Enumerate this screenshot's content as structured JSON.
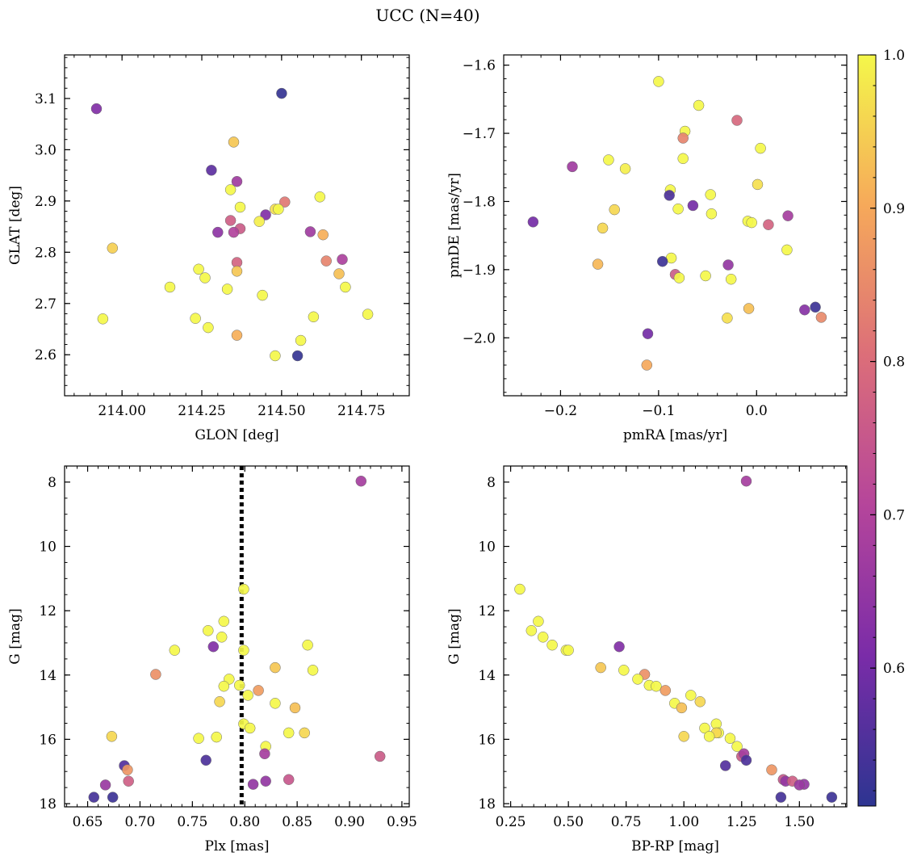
{
  "title": "UCC (N=40)",
  "colorbar": {
    "min": 0.51,
    "max": 1.0,
    "ticks": [
      0.6,
      0.7,
      0.8,
      0.9,
      1.0
    ],
    "tick_labels": [
      "0.6",
      "0.7",
      "0.8",
      "0.9",
      "1.0"
    ],
    "colormap": "plasma"
  },
  "chart_data": [
    {
      "type": "scatter",
      "title": "",
      "xlabel": "GLON [deg]",
      "ylabel": "GLAT [deg]",
      "xlim": [
        213.82,
        214.9
      ],
      "ylim": [
        2.52,
        3.185
      ],
      "y_inverted": false,
      "xticks": [
        214.0,
        214.25,
        214.5,
        214.75
      ],
      "xtick_labels": [
        "214.00",
        "214.25",
        "214.50",
        "214.75"
      ],
      "yticks": [
        2.6,
        2.7,
        2.8,
        2.9,
        3.0,
        3.1
      ],
      "ytick_labels": [
        "2.6",
        "2.7",
        "2.8",
        "2.9",
        "3.0",
        "3.1"
      ],
      "xminor": 0.05,
      "yminor": 0.02,
      "vline": null,
      "points": [
        [
          213.92,
          3.08,
          0.62
        ],
        [
          214.5,
          3.11,
          0.52
        ],
        [
          214.35,
          3.015,
          0.94
        ],
        [
          214.28,
          2.96,
          0.57
        ],
        [
          214.36,
          2.938,
          0.67
        ],
        [
          214.34,
          2.922,
          1.0
        ],
        [
          214.62,
          2.908,
          1.0
        ],
        [
          214.51,
          2.898,
          0.82
        ],
        [
          214.37,
          2.888,
          1.0
        ],
        [
          214.48,
          2.884,
          0.97
        ],
        [
          214.49,
          2.884,
          1.0
        ],
        [
          214.45,
          2.873,
          0.62
        ],
        [
          214.34,
          2.862,
          0.77
        ],
        [
          214.43,
          2.86,
          0.99
        ],
        [
          214.37,
          2.846,
          0.76
        ],
        [
          214.3,
          2.839,
          0.64
        ],
        [
          214.35,
          2.839,
          0.7
        ],
        [
          214.59,
          2.84,
          0.67
        ],
        [
          214.63,
          2.834,
          0.91
        ],
        [
          213.97,
          2.808,
          0.95
        ],
        [
          214.69,
          2.786,
          0.69
        ],
        [
          214.64,
          2.783,
          0.84
        ],
        [
          214.36,
          2.78,
          0.78
        ],
        [
          214.24,
          2.767,
          1.0
        ],
        [
          214.36,
          2.763,
          0.94
        ],
        [
          214.68,
          2.758,
          0.93
        ],
        [
          214.26,
          2.75,
          1.0
        ],
        [
          214.15,
          2.732,
          1.0
        ],
        [
          214.33,
          2.728,
          1.0
        ],
        [
          214.7,
          2.732,
          1.0
        ],
        [
          214.44,
          2.716,
          1.0
        ],
        [
          214.77,
          2.679,
          1.0
        ],
        [
          214.6,
          2.674,
          1.0
        ],
        [
          213.94,
          2.67,
          1.0
        ],
        [
          214.23,
          2.671,
          1.0
        ],
        [
          214.27,
          2.653,
          1.0
        ],
        [
          214.36,
          2.638,
          0.91
        ],
        [
          214.56,
          2.628,
          1.0
        ],
        [
          214.48,
          2.598,
          1.0
        ],
        [
          214.55,
          2.598,
          0.52
        ]
      ]
    },
    {
      "type": "scatter",
      "title": "",
      "xlabel": "pmRA [mas/yr]",
      "ylabel": "pmDE [mas/yr]",
      "xlim": [
        -0.258,
        0.092
      ],
      "ylim": [
        -2.085,
        -1.585
      ],
      "y_inverted": false,
      "xticks": [
        -0.2,
        -0.1,
        0.0
      ],
      "xtick_labels": [
        "−0.2",
        "−0.1",
        "0.0"
      ],
      "yticks": [
        -2.0,
        -1.9,
        -1.8,
        -1.7,
        -1.6
      ],
      "ytick_labels": [
        "−2.0",
        "−1.9",
        "−1.8",
        "−1.7",
        "−1.6"
      ],
      "xminor": 0.02,
      "yminor": 0.02,
      "vline": null,
      "points": [
        [
          -0.1,
          -1.624,
          1.0
        ],
        [
          -0.059,
          -1.659,
          1.0
        ],
        [
          -0.02,
          -1.681,
          0.79
        ],
        [
          -0.073,
          -1.697,
          1.0
        ],
        [
          -0.075,
          -1.707,
          0.84
        ],
        [
          0.004,
          -1.722,
          1.0
        ],
        [
          -0.151,
          -1.739,
          1.0
        ],
        [
          -0.075,
          -1.737,
          1.0
        ],
        [
          -0.188,
          -1.749,
          0.67
        ],
        [
          -0.134,
          -1.752,
          0.99
        ],
        [
          0.001,
          -1.775,
          0.97
        ],
        [
          -0.088,
          -1.783,
          1.0
        ],
        [
          -0.089,
          -1.791,
          0.55
        ],
        [
          -0.047,
          -1.79,
          1.0
        ],
        [
          -0.065,
          -1.806,
          0.6
        ],
        [
          -0.145,
          -1.812,
          0.96
        ],
        [
          -0.08,
          -1.811,
          1.0
        ],
        [
          -0.046,
          -1.818,
          1.0
        ],
        [
          0.032,
          -1.821,
          0.68
        ],
        [
          -0.228,
          -1.83,
          0.6
        ],
        [
          -0.009,
          -1.829,
          1.0
        ],
        [
          -0.005,
          -1.831,
          1.0
        ],
        [
          0.012,
          -1.834,
          0.78
        ],
        [
          -0.157,
          -1.839,
          0.96
        ],
        [
          0.031,
          -1.871,
          1.0
        ],
        [
          -0.087,
          -1.883,
          1.0
        ],
        [
          -0.096,
          -1.888,
          0.53
        ],
        [
          -0.162,
          -1.892,
          0.92
        ],
        [
          -0.029,
          -1.893,
          0.65
        ],
        [
          -0.083,
          -1.907,
          0.76
        ],
        [
          -0.052,
          -1.909,
          1.0
        ],
        [
          -0.079,
          -1.912,
          1.0
        ],
        [
          -0.026,
          -1.914,
          1.0
        ],
        [
          -0.008,
          -1.957,
          0.93
        ],
        [
          0.049,
          -1.959,
          0.63
        ],
        [
          0.06,
          -1.955,
          0.53
        ],
        [
          0.066,
          -1.97,
          0.85
        ],
        [
          -0.03,
          -1.971,
          0.97
        ],
        [
          -0.111,
          -1.994,
          0.6
        ],
        [
          -0.112,
          -2.04,
          0.9
        ]
      ]
    },
    {
      "type": "scatter",
      "title": "",
      "xlabel": "Plx [mas]",
      "ylabel": "G [mag]",
      "xlim": [
        0.628,
        0.957
      ],
      "ylim": [
        7.5,
        18.1
      ],
      "y_inverted": true,
      "xticks": [
        0.65,
        0.7,
        0.75,
        0.8,
        0.85,
        0.9,
        0.95
      ],
      "xtick_labels": [
        "0.65",
        "0.70",
        "0.75",
        "0.80",
        "0.85",
        "0.90",
        "0.95"
      ],
      "yticks": [
        8,
        10,
        12,
        14,
        16,
        18
      ],
      "ytick_labels": [
        "8",
        "10",
        "12",
        "14",
        "16",
        "18"
      ],
      "xminor": 0.01,
      "yminor": 0.5,
      "vline": 0.797,
      "points": [
        [
          0.911,
          7.97,
          0.68
        ],
        [
          0.799,
          11.33,
          1.0
        ],
        [
          0.78,
          12.33,
          1.0
        ],
        [
          0.765,
          12.62,
          1.0
        ],
        [
          0.778,
          12.82,
          1.0
        ],
        [
          0.86,
          13.07,
          1.0
        ],
        [
          0.77,
          13.12,
          0.62
        ],
        [
          0.733,
          13.23,
          1.0
        ],
        [
          0.799,
          13.23,
          1.0
        ],
        [
          0.829,
          13.77,
          0.94
        ],
        [
          0.865,
          13.85,
          1.0
        ],
        [
          0.715,
          13.98,
          0.86
        ],
        [
          0.785,
          14.13,
          1.0
        ],
        [
          0.795,
          14.32,
          1.0
        ],
        [
          0.78,
          14.35,
          1.0
        ],
        [
          0.813,
          14.48,
          0.88
        ],
        [
          0.803,
          14.63,
          1.0
        ],
        [
          0.776,
          14.83,
          0.96
        ],
        [
          0.829,
          14.88,
          1.0
        ],
        [
          0.848,
          15.02,
          0.93
        ],
        [
          0.799,
          15.52,
          1.0
        ],
        [
          0.805,
          15.65,
          1.0
        ],
        [
          0.842,
          15.8,
          1.0
        ],
        [
          0.857,
          15.8,
          0.96
        ],
        [
          0.673,
          15.91,
          0.96
        ],
        [
          0.773,
          15.93,
          1.0
        ],
        [
          0.756,
          15.97,
          1.0
        ],
        [
          0.82,
          16.22,
          1.0
        ],
        [
          0.819,
          16.45,
          0.68
        ],
        [
          0.929,
          16.53,
          0.76
        ],
        [
          0.763,
          16.65,
          0.55
        ],
        [
          0.685,
          16.82,
          0.56
        ],
        [
          0.688,
          16.95,
          0.87
        ],
        [
          0.842,
          17.25,
          0.75
        ],
        [
          0.82,
          17.3,
          0.65
        ],
        [
          0.689,
          17.3,
          0.77
        ],
        [
          0.808,
          17.4,
          0.65
        ],
        [
          0.667,
          17.42,
          0.66
        ],
        [
          0.656,
          17.8,
          0.54
        ],
        [
          0.674,
          17.8,
          0.53
        ]
      ]
    },
    {
      "type": "scatter",
      "title": "",
      "xlabel": "BP-RP [mag]",
      "ylabel": "G [mag]",
      "xlim": [
        0.22,
        1.705
      ],
      "ylim": [
        7.5,
        18.1
      ],
      "y_inverted": true,
      "xticks": [
        0.25,
        0.5,
        0.75,
        1.0,
        1.25,
        1.5
      ],
      "xtick_labels": [
        "0.25",
        "0.50",
        "0.75",
        "1.00",
        "1.25",
        "1.50"
      ],
      "yticks": [
        8,
        10,
        12,
        14,
        16,
        18
      ],
      "ytick_labels": [
        "8",
        "10",
        "12",
        "14",
        "16",
        "18"
      ],
      "xminor": 0.05,
      "yminor": 0.5,
      "vline": null,
      "points": [
        [
          1.27,
          7.97,
          0.68
        ],
        [
          0.29,
          11.33,
          1.0
        ],
        [
          0.37,
          12.33,
          1.0
        ],
        [
          0.34,
          12.62,
          1.0
        ],
        [
          0.39,
          12.82,
          1.0
        ],
        [
          0.43,
          13.07,
          1.0
        ],
        [
          0.72,
          13.12,
          0.62
        ],
        [
          0.49,
          13.23,
          1.0
        ],
        [
          0.5,
          13.23,
          1.0
        ],
        [
          0.64,
          13.77,
          0.94
        ],
        [
          0.74,
          13.85,
          1.0
        ],
        [
          0.83,
          13.98,
          0.86
        ],
        [
          0.8,
          14.13,
          1.0
        ],
        [
          0.85,
          14.32,
          1.0
        ],
        [
          0.88,
          14.35,
          1.0
        ],
        [
          0.92,
          14.48,
          0.88
        ],
        [
          1.03,
          14.63,
          1.0
        ],
        [
          0.96,
          14.88,
          1.0
        ],
        [
          1.07,
          14.83,
          0.96
        ],
        [
          0.99,
          15.02,
          0.93
        ],
        [
          1.14,
          15.52,
          1.0
        ],
        [
          1.09,
          15.65,
          1.0
        ],
        [
          1.15,
          15.8,
          1.0
        ],
        [
          1.14,
          15.8,
          0.96
        ],
        [
          1.11,
          15.91,
          1.0
        ],
        [
          1.2,
          15.97,
          1.0
        ],
        [
          1.0,
          15.91,
          0.96
        ],
        [
          1.23,
          16.22,
          1.0
        ],
        [
          1.25,
          16.53,
          0.76
        ],
        [
          1.26,
          16.45,
          0.68
        ],
        [
          1.27,
          16.65,
          0.55
        ],
        [
          1.18,
          16.82,
          0.56
        ],
        [
          1.38,
          16.95,
          0.87
        ],
        [
          1.43,
          17.25,
          0.75
        ],
        [
          1.44,
          17.3,
          0.65
        ],
        [
          1.47,
          17.3,
          0.77
        ],
        [
          1.52,
          17.4,
          0.65
        ],
        [
          1.5,
          17.42,
          0.66
        ],
        [
          1.42,
          17.8,
          0.54
        ],
        [
          1.64,
          17.8,
          0.53
        ]
      ]
    }
  ]
}
